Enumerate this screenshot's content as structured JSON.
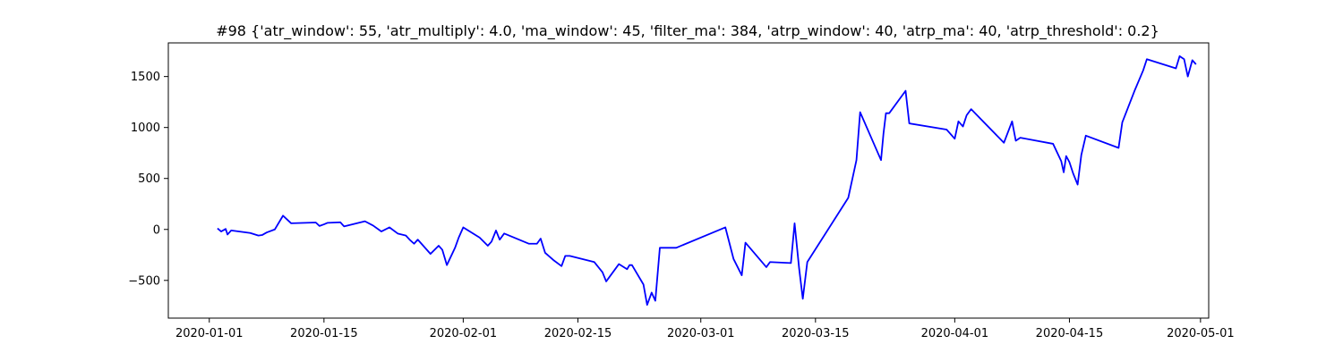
{
  "chart_data": {
    "type": "line",
    "title": "#98 {'atr_window': 55, 'atr_multiply': 4.0, 'ma_window': 45, 'filter_ma': 384, 'atrp_window': 40, 'atrp_ma': 40, 'atrp_threshold': 0.2}",
    "xlabel": "",
    "ylabel": "",
    "x_axis_type": "date",
    "xlim": [
      "2019-12-27",
      "2020-05-02"
    ],
    "ylim": [
      -870,
      1830
    ],
    "grid": false,
    "legend": "none",
    "x_ticks": [
      "2020-01-01",
      "2020-01-15",
      "2020-02-01",
      "2020-02-15",
      "2020-03-01",
      "2020-03-15",
      "2020-04-01",
      "2020-04-15",
      "2020-05-01"
    ],
    "y_ticks": [
      -500,
      0,
      500,
      1000,
      1500
    ],
    "y_tick_labels": [
      "−500",
      "0",
      "500",
      "1000",
      "1500"
    ],
    "series": [
      {
        "name": "",
        "color": "#0000ff",
        "x": [
          "2020-01-02",
          "2020-01-02",
          "2020-01-03",
          "2020-01-03",
          "2020-01-03",
          "2020-01-03",
          "2020-01-06",
          "2020-01-07",
          "2020-01-07",
          "2020-01-08",
          "2020-01-09",
          "2020-01-10",
          "2020-01-11",
          "2020-01-14",
          "2020-01-14",
          "2020-01-15",
          "2020-01-15",
          "2020-01-17",
          "2020-01-17",
          "2020-01-20",
          "2020-01-21",
          "2020-01-22",
          "2020-01-23",
          "2020-01-24",
          "2020-01-25",
          "2020-01-25",
          "2020-01-26",
          "2020-01-26",
          "2020-01-28",
          "2020-01-29",
          "2020-01-29",
          "2020-01-30",
          "2020-01-31",
          "2020-01-31",
          "2020-02-01",
          "2020-02-03",
          "2020-02-04",
          "2020-02-04",
          "2020-02-05",
          "2020-02-05",
          "2020-02-06",
          "2020-02-09",
          "2020-02-10",
          "2020-02-10",
          "2020-02-11",
          "2020-02-12",
          "2020-02-13",
          "2020-02-13",
          "2020-02-14",
          "2020-02-17",
          "2020-02-18",
          "2020-02-18",
          "2020-02-20",
          "2020-02-21",
          "2020-02-21",
          "2020-02-21",
          "2020-02-23",
          "2020-02-23",
          "2020-02-24",
          "2020-02-24",
          "2020-02-25",
          "2020-02-26",
          "2020-02-27",
          "2020-03-04",
          "2020-03-05",
          "2020-03-06",
          "2020-03-06",
          "2020-03-09",
          "2020-03-09",
          "2020-03-12",
          "2020-03-12",
          "2020-03-13",
          "2020-03-13",
          "2020-03-14",
          "2020-03-19",
          "2020-03-20",
          "2020-03-20",
          "2020-03-23",
          "2020-03-23",
          "2020-03-23",
          "2020-03-24",
          "2020-03-26",
          "2020-03-26",
          "2020-03-31",
          "2020-04-01",
          "2020-04-01",
          "2020-04-02",
          "2020-04-02",
          "2020-04-03",
          "2020-04-07",
          "2020-04-08",
          "2020-04-08",
          "2020-04-09",
          "2020-04-13",
          "2020-04-14",
          "2020-04-14",
          "2020-04-14",
          "2020-04-15",
          "2020-04-15",
          "2020-04-16",
          "2020-04-16",
          "2020-04-17",
          "2020-04-21",
          "2020-04-21",
          "2020-04-23",
          "2020-04-24",
          "2020-04-24",
          "2020-04-28",
          "2020-04-28",
          "2020-04-29",
          "2020-04-29",
          "2020-04-30",
          "2020-04-30"
        ],
        "y": [
          10,
          -20,
          5,
          -50,
          -30,
          -10,
          -35,
          -60,
          -55,
          -30,
          0,
          135,
          60,
          68,
          34,
          50,
          65,
          70,
          30,
          80,
          38,
          -20,
          20,
          -40,
          -60,
          -100,
          -140,
          -100,
          -240,
          -160,
          -200,
          -350,
          -180,
          -80,
          20,
          -80,
          -160,
          -120,
          -10,
          -100,
          -40,
          -140,
          -140,
          -90,
          -230,
          -300,
          -360,
          -260,
          -260,
          -320,
          -420,
          -510,
          -340,
          -390,
          -350,
          -350,
          -540,
          -740,
          -620,
          -700,
          -180,
          -180,
          -180,
          20,
          -290,
          -450,
          -130,
          -370,
          -320,
          -330,
          60,
          -380,
          -680,
          -320,
          310,
          680,
          1150,
          680,
          940,
          1140,
          1140,
          1360,
          1040,
          980,
          890,
          1060,
          1010,
          1120,
          1180,
          850,
          1060,
          870,
          900,
          840,
          670,
          560,
          720,
          660,
          550,
          440,
          730,
          920,
          800,
          1050,
          1370,
          1560,
          1670,
          1580,
          1700,
          1670,
          1500,
          1660,
          1620
        ]
      }
    ]
  }
}
